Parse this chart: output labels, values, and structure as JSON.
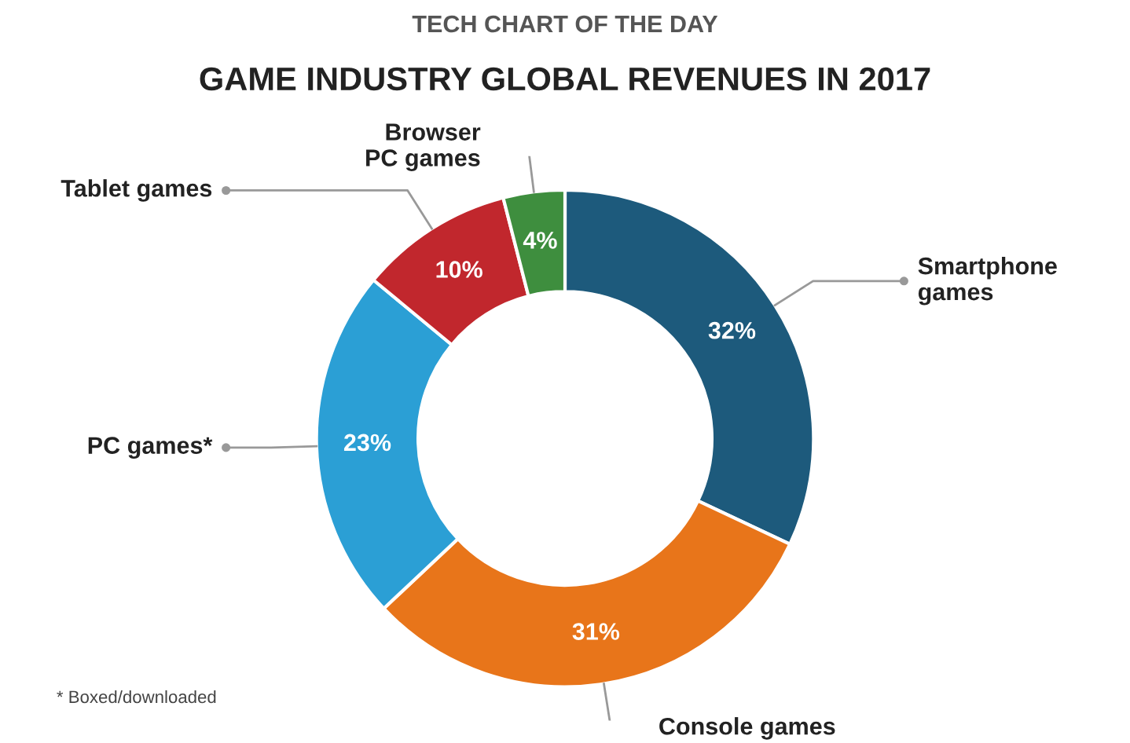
{
  "chart_data": {
    "type": "donut",
    "title": "GAME INDUSTRY GLOBAL REVENUES IN 2017",
    "subtitle": "TECH CHART OF THE DAY",
    "categories": [
      "Smartphone\ngames",
      "Console games",
      "PC games*",
      "Tablet games",
      "Browser\nPC games"
    ],
    "values": [
      32,
      31,
      23,
      10,
      4
    ],
    "colors": [
      "#1d5a7c",
      "#e8751a",
      "#2b9fd5",
      "#c1272d",
      "#3e8e3e"
    ],
    "value_labels": [
      "32%",
      "31%",
      "23%",
      "10%",
      "4%"
    ],
    "annotations": [
      "* Boxed/downloaded"
    ]
  }
}
